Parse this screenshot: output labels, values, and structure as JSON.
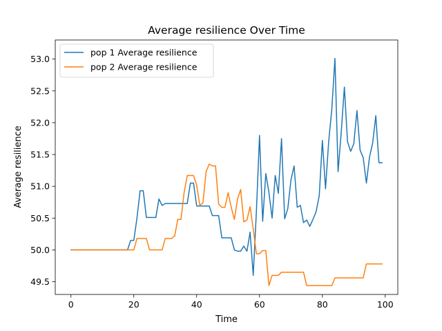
{
  "chart_data": {
    "type": "line",
    "title": "Average resilience Over Time",
    "xlabel": "Time",
    "ylabel": "Average resilience",
    "xlim": [
      -5,
      104
    ],
    "ylim": [
      49.3,
      53.3
    ],
    "xticks": [
      "0",
      "20",
      "40",
      "60",
      "80",
      "100"
    ],
    "yticks": [
      "49.5",
      "50.0",
      "50.5",
      "51.0",
      "51.5",
      "52.0",
      "52.5",
      "53.0"
    ],
    "grid": false,
    "legend_position": "top-left",
    "series": [
      {
        "name": "pop 1 Average resilience",
        "color": "#1f77b4",
        "x": [
          0,
          1,
          2,
          3,
          4,
          5,
          6,
          7,
          8,
          9,
          10,
          11,
          12,
          13,
          14,
          15,
          16,
          17,
          18,
          19,
          20,
          21,
          22,
          23,
          24,
          25,
          26,
          27,
          28,
          29,
          30,
          31,
          32,
          33,
          34,
          35,
          36,
          37,
          38,
          39,
          40,
          41,
          42,
          43,
          44,
          45,
          46,
          47,
          48,
          49,
          50,
          51,
          52,
          53,
          54,
          55,
          56,
          57,
          58,
          59,
          60,
          61,
          62,
          63,
          64,
          65,
          66,
          67,
          68,
          69,
          70,
          71,
          72,
          73,
          74,
          75,
          76,
          77,
          78,
          79,
          80,
          81,
          82,
          83,
          84,
          85,
          86,
          87,
          88,
          89,
          90,
          91,
          92,
          93,
          94,
          95,
          96,
          97,
          98,
          99
        ],
        "y": [
          50.0,
          50.0,
          50.0,
          50.0,
          50.0,
          50.0,
          50.0,
          50.0,
          50.0,
          50.0,
          50.0,
          50.0,
          50.0,
          50.0,
          50.0,
          50.0,
          50.0,
          50.0,
          50.0,
          50.15,
          50.15,
          50.5,
          50.93,
          50.93,
          50.51,
          50.51,
          50.51,
          50.51,
          50.8,
          50.7,
          50.73,
          50.73,
          50.73,
          50.73,
          50.73,
          50.73,
          50.73,
          50.73,
          51.05,
          51.05,
          50.69,
          50.69,
          50.69,
          50.69,
          50.69,
          50.54,
          50.54,
          50.54,
          50.19,
          50.19,
          50.19,
          50.19,
          50.0,
          49.98,
          49.98,
          50.06,
          49.98,
          50.28,
          49.6,
          50.6,
          51.8,
          50.45,
          51.2,
          50.9,
          50.5,
          51.17,
          50.89,
          51.75,
          50.49,
          50.65,
          51.1,
          51.32,
          50.67,
          50.7,
          50.43,
          50.47,
          50.37,
          50.48,
          50.6,
          50.85,
          51.72,
          50.96,
          51.7,
          52.21,
          53.01,
          51.23,
          51.85,
          52.56,
          51.7,
          51.55,
          51.67,
          52.19,
          51.57,
          51.45,
          51.05,
          51.46,
          51.68,
          52.11,
          51.37,
          51.37
        ]
      },
      {
        "name": "pop 2 Average resilience",
        "color": "#ff7f0e",
        "x": [
          0,
          1,
          2,
          3,
          4,
          5,
          6,
          7,
          8,
          9,
          10,
          11,
          12,
          13,
          14,
          15,
          16,
          17,
          18,
          19,
          20,
          21,
          22,
          23,
          24,
          25,
          26,
          27,
          28,
          29,
          30,
          31,
          32,
          33,
          34,
          35,
          36,
          37,
          38,
          39,
          40,
          41,
          42,
          43,
          44,
          45,
          46,
          47,
          48,
          49,
          50,
          51,
          52,
          53,
          54,
          55,
          56,
          57,
          58,
          59,
          60,
          61,
          62,
          63,
          64,
          65,
          66,
          67,
          68,
          69,
          70,
          71,
          72,
          73,
          74,
          75,
          76,
          77,
          78,
          79,
          80,
          81,
          82,
          83,
          84,
          85,
          86,
          87,
          88,
          89,
          90,
          91,
          92,
          93,
          94,
          95,
          96,
          97,
          98,
          99
        ],
        "y": [
          50.0,
          50.0,
          50.0,
          50.0,
          50.0,
          50.0,
          50.0,
          50.0,
          50.0,
          50.0,
          50.0,
          50.0,
          50.0,
          50.0,
          50.0,
          50.0,
          50.0,
          50.0,
          50.0,
          50.0,
          50.0,
          50.18,
          50.18,
          50.18,
          50.18,
          50.0,
          50.0,
          50.0,
          50.0,
          50.0,
          50.18,
          50.18,
          50.18,
          50.22,
          50.48,
          50.48,
          50.9,
          51.17,
          51.17,
          51.17,
          51.02,
          50.7,
          50.74,
          51.23,
          51.35,
          51.32,
          51.32,
          50.72,
          50.67,
          50.67,
          50.9,
          50.67,
          50.48,
          50.8,
          50.95,
          50.44,
          50.47,
          50.68,
          50.33,
          49.94,
          49.94,
          49.99,
          49.99,
          49.44,
          49.6,
          49.6,
          49.6,
          49.65,
          49.65,
          49.65,
          49.65,
          49.65,
          49.65,
          49.65,
          49.65,
          49.44,
          49.44,
          49.44,
          49.44,
          49.44,
          49.44,
          49.44,
          49.44,
          49.44,
          49.56,
          49.56,
          49.56,
          49.56,
          49.56,
          49.56,
          49.56,
          49.56,
          49.56,
          49.56,
          49.78,
          49.78,
          49.78,
          49.78,
          49.78,
          49.78
        ]
      }
    ]
  }
}
